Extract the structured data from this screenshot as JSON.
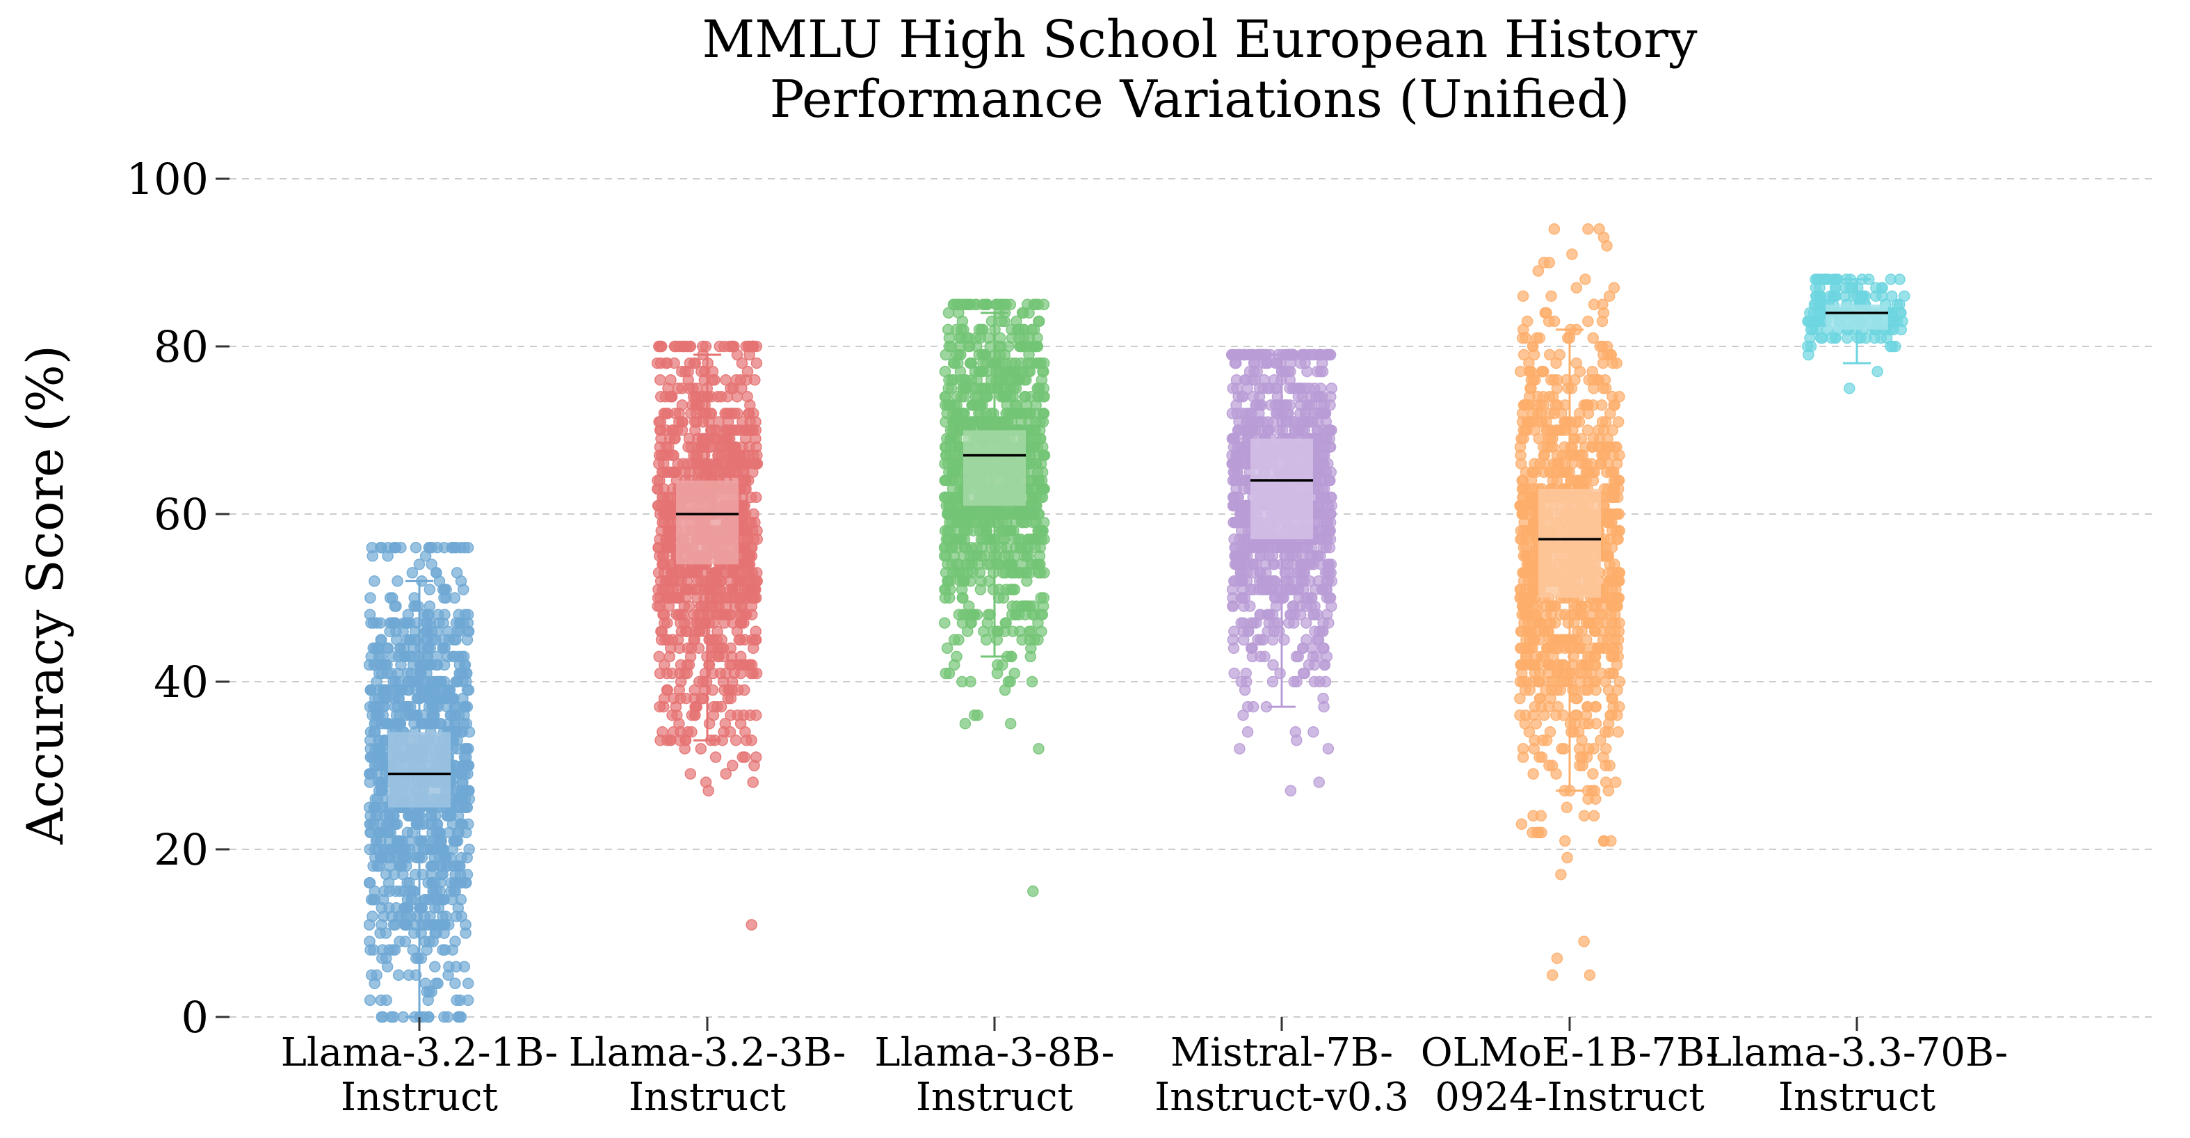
{
  "chart_data": {
    "type": "strip-box",
    "title": [
      "MMLU High School European History",
      "Performance Variations (Unified)"
    ],
    "xlabel": "",
    "ylabel": "Accuracy Score (%)",
    "ylim": [
      0,
      100
    ],
    "yticks": [
      "0",
      "20",
      "40",
      "60",
      "80",
      "100"
    ],
    "grid": "horizontal dashed",
    "categories": [
      {
        "lines": [
          "Llama-3.2-1B-",
          "Instruct"
        ],
        "color": "#6fa8d4",
        "box_color": "#9fc4e2",
        "median": 29,
        "q1": 25,
        "q3": 34,
        "whisker_low": 0,
        "whisker_high": 52,
        "n": 1000,
        "min": 0,
        "max": 56,
        "center": 29,
        "spread": 13
      },
      {
        "lines": [
          "Llama-3.2-3B-",
          "Instruct"
        ],
        "color": "#e57373",
        "box_color": "#eda3a3",
        "median": 60,
        "q1": 54,
        "q3": 64,
        "whisker_low": 33,
        "whisker_high": 79,
        "n": 1000,
        "min": 11,
        "max": 80,
        "center": 58,
        "spread": 12
      },
      {
        "lines": [
          "Llama-3-8B-",
          "Instruct"
        ],
        "color": "#74c476",
        "box_color": "#a5d8a6",
        "median": 67,
        "q1": 61,
        "q3": 70,
        "whisker_low": 43,
        "whisker_high": 84,
        "n": 1000,
        "min": 15,
        "max": 85,
        "center": 65,
        "spread": 11
      },
      {
        "lines": [
          "Mistral-7B-",
          "Instruct-v0.3"
        ],
        "color": "#b99cd6",
        "box_color": "#d4c1e6",
        "median": 64,
        "q1": 57,
        "q3": 69,
        "whisker_low": 37,
        "whisker_high": 79,
        "n": 1000,
        "min": 27,
        "max": 79,
        "center": 62,
        "spread": 10
      },
      {
        "lines": [
          "OLMoE-1B-7B-",
          "0924-Instruct"
        ],
        "color": "#fdae6b",
        "box_color": "#fdc89d",
        "median": 57,
        "q1": 50,
        "q3": 63,
        "whisker_low": 27,
        "whisker_high": 82,
        "n": 1000,
        "min": 5,
        "max": 94,
        "center": 56,
        "spread": 14
      },
      {
        "lines": [
          "Llama-3.3-70B-",
          "Instruct"
        ],
        "color": "#6dd5e0",
        "box_color": "#a0e3ea",
        "median": 84,
        "q1": 82,
        "q3": 85,
        "whisker_low": 78,
        "whisker_high": 88,
        "n": 150,
        "min": 75,
        "max": 88,
        "center": 84,
        "spread": 2.5
      }
    ]
  }
}
